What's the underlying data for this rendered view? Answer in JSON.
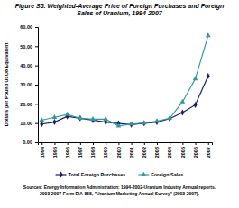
{
  "chart_data": {
    "type": "line",
    "title": "Figure S5.  Weighted-Average Price of Foreign Purchases and Foreign Sales of Uranium, 1994-2007",
    "y_label": "Dollars per Pound U3O8 Equivalent",
    "source": "Sources: Energy Information Administration: 1994-2002-Uranium Industry Annual reports. 2003-2007-Form EIA-858, \"Uranium Marketing Annual Survey\" (2003-2007).",
    "categories": [
      "1994",
      "1995",
      "1996",
      "1997",
      "1998",
      "1999",
      "2000",
      "2001",
      "2002",
      "2003",
      "2004",
      "2005",
      "2006",
      "2007"
    ],
    "series": [
      {
        "name": "Total Foreign Purchases",
        "color": "#1a1a73",
        "marker": "diamond",
        "values": [
          9.5,
          10.5,
          13.5,
          12.5,
          11.5,
          10.5,
          9.8,
          9.2,
          9.9,
          10.5,
          12.3,
          15.5,
          19.5,
          34.5
        ]
      },
      {
        "name": "Foreign Sales",
        "color": "#2e9c96",
        "marker": "triangle",
        "values": [
          11.5,
          13,
          14.5,
          12.5,
          12,
          12,
          8.5,
          9.5,
          10,
          11,
          12.5,
          21,
          33,
          55.5
        ]
      }
    ],
    "ylim": [
      0,
      60
    ],
    "yticks": [
      {
        "value": 0,
        "label": "0.00"
      },
      {
        "value": 10,
        "label": "10.00"
      },
      {
        "value": 20,
        "label": "20.00"
      },
      {
        "value": 30,
        "label": "30.00"
      },
      {
        "value": 40,
        "label": "40.00"
      },
      {
        "value": 50,
        "label": "50.00"
      },
      {
        "value": 60,
        "label": "60.00"
      }
    ],
    "grid": false,
    "legend": "bottom"
  }
}
